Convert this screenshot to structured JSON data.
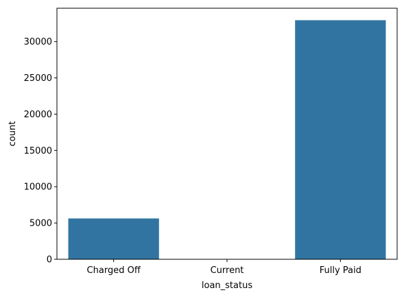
{
  "chart_data": {
    "type": "bar",
    "title": "",
    "xlabel": "loan_status",
    "ylabel": "count",
    "categories": [
      "Charged Off",
      "Current",
      "Fully Paid"
    ],
    "values": [
      5627,
      0,
      32950
    ],
    "ylim": [
      0,
      34600
    ],
    "yticks": [
      0,
      5000,
      10000,
      15000,
      20000,
      25000,
      30000
    ],
    "grid": false,
    "bar_color": "#3274a1"
  }
}
